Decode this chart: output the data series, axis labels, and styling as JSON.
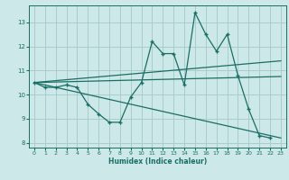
{
  "xlabel": "Humidex (Indice chaleur)",
  "bg_color": "#cce8e8",
  "grid_color": "#aacccc",
  "line_color": "#1a6e64",
  "xlim": [
    -0.5,
    23.5
  ],
  "ylim": [
    7.8,
    13.7
  ],
  "yticks": [
    8,
    9,
    10,
    11,
    12,
    13
  ],
  "xticks": [
    0,
    1,
    2,
    3,
    4,
    5,
    6,
    7,
    8,
    9,
    10,
    11,
    12,
    13,
    14,
    15,
    16,
    17,
    18,
    19,
    20,
    21,
    22,
    23
  ],
  "series1_x": [
    0,
    1,
    2,
    3,
    4,
    5,
    6,
    7,
    8,
    9,
    10,
    11,
    12,
    13,
    14,
    15,
    16,
    17,
    18,
    19,
    20,
    21,
    22
  ],
  "series1_y": [
    10.5,
    10.3,
    10.3,
    10.4,
    10.3,
    9.6,
    9.2,
    8.85,
    8.85,
    9.9,
    10.5,
    12.2,
    11.7,
    11.7,
    10.4,
    13.4,
    12.5,
    11.8,
    12.5,
    10.8,
    9.4,
    8.3,
    8.2
  ],
  "trend1_x": [
    0,
    23
  ],
  "trend1_y": [
    10.5,
    11.4
  ],
  "trend2_x": [
    0,
    23
  ],
  "trend2_y": [
    10.5,
    10.75
  ],
  "trend3_x": [
    0,
    23
  ],
  "trend3_y": [
    10.5,
    8.2
  ]
}
